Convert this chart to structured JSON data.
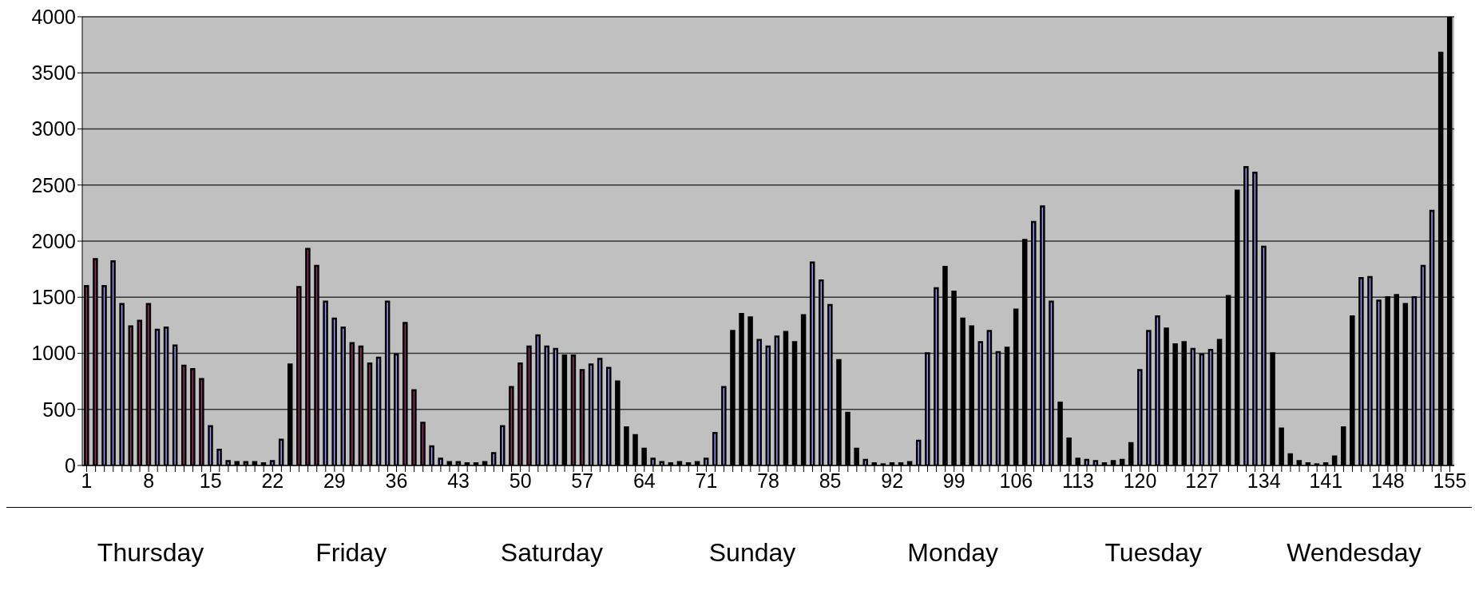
{
  "chart_data": {
    "type": "bar",
    "categories": [
      "1",
      null,
      null,
      null,
      null,
      null,
      null,
      "8",
      null,
      null,
      null,
      null,
      null,
      null,
      "15",
      null,
      null,
      null,
      null,
      null,
      null,
      "22",
      null,
      null,
      null,
      null,
      null,
      null,
      "29",
      null,
      null,
      null,
      null,
      null,
      null,
      "36",
      null,
      null,
      null,
      null,
      null,
      null,
      "43",
      null,
      null,
      null,
      null,
      null,
      null,
      "50",
      null,
      null,
      null,
      null,
      null,
      null,
      "57",
      null,
      null,
      null,
      null,
      null,
      null,
      "64",
      null,
      null,
      null,
      null,
      null,
      null,
      "71",
      null,
      null,
      null,
      null,
      null,
      null,
      "78",
      null,
      null,
      null,
      null,
      null,
      null,
      "85",
      null,
      null,
      null,
      null,
      null,
      null,
      "92",
      null,
      null,
      null,
      null,
      null,
      null,
      "99",
      null,
      null,
      null,
      null,
      null,
      null,
      "106",
      null,
      null,
      null,
      null,
      null,
      null,
      "113",
      null,
      null,
      null,
      null,
      null,
      null,
      "120",
      null,
      null,
      null,
      null,
      null,
      null,
      "127",
      null,
      null,
      null,
      null,
      null,
      null,
      "134",
      null,
      null,
      null,
      null,
      null,
      null,
      "141",
      null,
      null,
      null,
      null,
      null,
      null,
      "148",
      null,
      null,
      null,
      null,
      null,
      null,
      "155"
    ],
    "values": [
      1600,
      1840,
      1600,
      1820,
      1440,
      1240,
      1290,
      1440,
      1210,
      1230,
      1070,
      890,
      860,
      770,
      350,
      140,
      40,
      30,
      30,
      30,
      20,
      40,
      230,
      900,
      1590,
      1930,
      1780,
      1460,
      1310,
      1230,
      1090,
      1060,
      910,
      960,
      1460,
      990,
      1270,
      670,
      380,
      170,
      60,
      30,
      30,
      20,
      20,
      30,
      110,
      350,
      700,
      910,
      1060,
      1160,
      1060,
      1040,
      980,
      980,
      850,
      900,
      950,
      870,
      750,
      340,
      270,
      150,
      60,
      30,
      20,
      30,
      20,
      30,
      60,
      290,
      700,
      1200,
      1350,
      1320,
      1120,
      1060,
      1150,
      1190,
      1100,
      1340,
      1810,
      1650,
      1430,
      940,
      470,
      150,
      50,
      20,
      10,
      20,
      20,
      30,
      220,
      1000,
      1580,
      1770,
      1550,
      1310,
      1240,
      1100,
      1200,
      1010,
      1050,
      1390,
      2010,
      2170,
      2310,
      1460,
      560,
      240,
      60,
      50,
      40,
      20,
      40,
      50,
      200,
      850,
      1200,
      1330,
      1220,
      1080,
      1100,
      1040,
      990,
      1030,
      1120,
      1510,
      2450,
      2660,
      2610,
      1950,
      1000,
      330,
      100,
      40,
      20,
      10,
      20,
      80,
      340,
      1330,
      1670,
      1680,
      1470,
      1500,
      1520,
      1440,
      1500,
      1780,
      2270,
      3680,
      4000
    ],
    "colors": [
      "#993366",
      "#993366",
      "#9999ff",
      "#9999ff",
      "#9999ff",
      "#993366",
      "#993366",
      "#993366",
      "#9999ff",
      "#9999ff",
      "#9999ff",
      "#993366",
      "#993366",
      "#993366",
      "#9999ff",
      "#9999ff",
      "#9999ff",
      "#000000",
      "#993366",
      "#000000",
      "#000000",
      "#9999ff",
      "#9999ff",
      "#000000",
      "#993366",
      "#993366",
      "#993366",
      "#9999ff",
      "#9999ff",
      "#9999ff",
      "#993366",
      "#993366",
      "#993366",
      "#9999ff",
      "#9999ff",
      "#9999ff",
      "#993366",
      "#993366",
      "#993366",
      "#9999ff",
      "#9999ff",
      "#000000",
      "#993366",
      "#000000",
      "#000000",
      "#000000",
      "#9999ff",
      "#9999ff",
      "#993366",
      "#993366",
      "#993366",
      "#9999ff",
      "#9999ff",
      "#9999ff",
      "#000000",
      "#993366",
      "#993366",
      "#9999ff",
      "#9999ff",
      "#9999ff",
      "#000000",
      "#000000",
      "#000000",
      "#000000",
      "#9999ff",
      "#9999ff",
      "#000000",
      "#000000",
      "#000000",
      "#000000",
      "#9999ff",
      "#9999ff",
      "#9999ff",
      "#000000",
      "#000000",
      "#000000",
      "#9999ff",
      "#9999ff",
      "#9999ff",
      "#000000",
      "#000000",
      "#000000",
      "#9999ff",
      "#9999ff",
      "#9999ff",
      "#000000",
      "#000000",
      "#000000",
      "#9999ff",
      "#000000",
      "#000000",
      "#000000",
      "#000000",
      "#000000",
      "#9999ff",
      "#9999ff",
      "#9999ff",
      "#000000",
      "#000000",
      "#000000",
      "#000000",
      "#9999ff",
      "#9999ff",
      "#9999ff",
      "#000000",
      "#000000",
      "#000000",
      "#9999ff",
      "#9999ff",
      "#9999ff",
      "#000000",
      "#000000",
      "#000000",
      "#9999ff",
      "#9999ff",
      "#000000",
      "#000000",
      "#000000",
      "#000000",
      "#9999ff",
      "#9999ff",
      "#9999ff",
      "#000000",
      "#000000",
      "#000000",
      "#9999ff",
      "#9999ff",
      "#9999ff",
      "#000000",
      "#000000",
      "#000000",
      "#9999ff",
      "#9999ff",
      "#9999ff",
      "#000000",
      "#000000",
      "#000000",
      "#000000",
      "#000000",
      "#000000",
      "#000000",
      "#000000",
      "#000000",
      "#000000",
      "#9999ff",
      "#9999ff",
      "#9999ff",
      "#000000",
      "#000000",
      "#000000",
      "#9999ff",
      "#9999ff",
      "#9999ff",
      "#000000",
      "#000000"
    ],
    "ylim": [
      0,
      4000
    ],
    "yticks": [
      0,
      500,
      1000,
      1500,
      2000,
      2500,
      3000,
      3500,
      4000
    ],
    "grid": "y",
    "annotations": [
      "Thursday",
      "Friday",
      "Saturday",
      "Sunday",
      "Monday",
      "Tuesday",
      "Wendesday"
    ]
  }
}
